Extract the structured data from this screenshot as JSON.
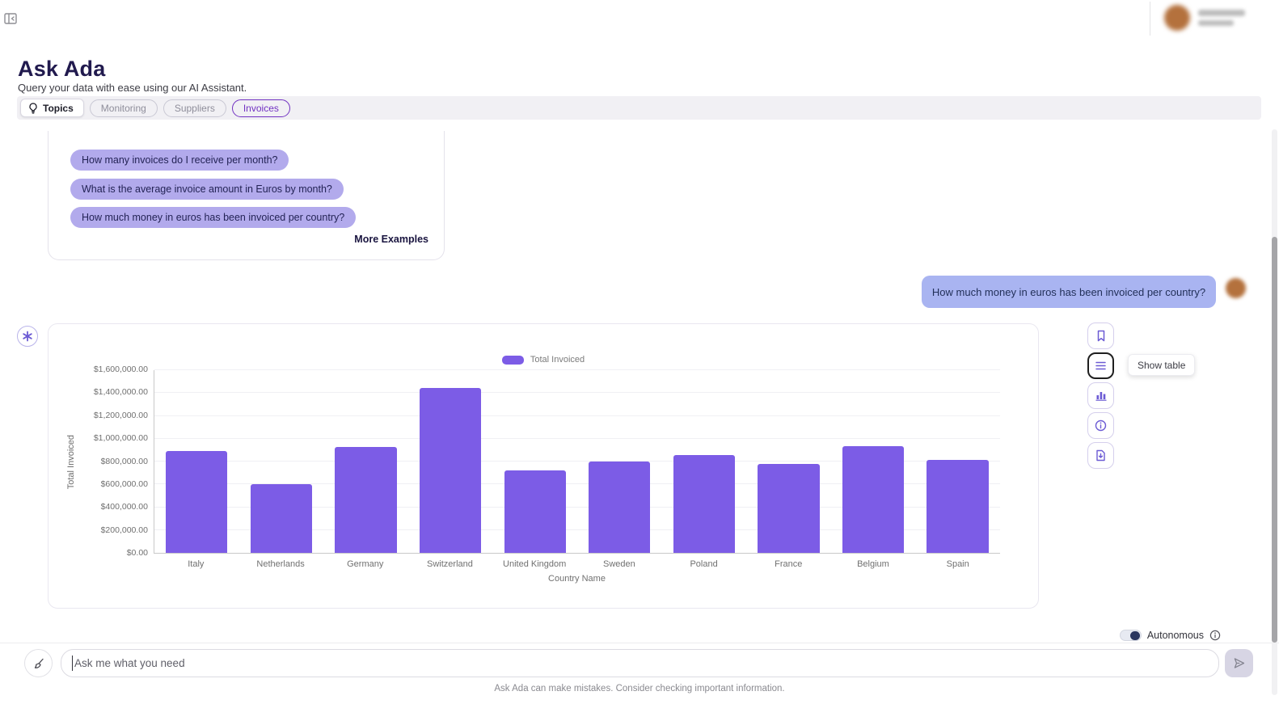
{
  "header": {
    "title": "Ask Ada",
    "subtitle": "Query your data with ease using our AI Assistant."
  },
  "tabs": {
    "topics_label": "Topics",
    "items": [
      {
        "label": "Monitoring",
        "active": false
      },
      {
        "label": "Suppliers",
        "active": false
      },
      {
        "label": "Invoices",
        "active": true
      }
    ]
  },
  "examples": {
    "questions": [
      "How many invoices do I receive per month?",
      "What is the average invoice amount in Euros by month?",
      "How much money in euros has been invoiced per country?"
    ],
    "more_label": "More Examples"
  },
  "chat": {
    "user_message": "How much money in euros has been invoiced per country?"
  },
  "actions": {
    "tooltip": "Show table",
    "buttons": [
      {
        "name": "bookmark"
      },
      {
        "name": "show-table",
        "active": true
      },
      {
        "name": "show-chart"
      },
      {
        "name": "info"
      },
      {
        "name": "export"
      }
    ]
  },
  "chart_data": {
    "type": "bar",
    "legend": [
      "Total Invoiced"
    ],
    "categories": [
      "Italy",
      "Netherlands",
      "Germany",
      "Switzerland",
      "United Kingdom",
      "Sweden",
      "Poland",
      "France",
      "Belgium",
      "Spain"
    ],
    "values": [
      890000,
      600000,
      920000,
      1440000,
      720000,
      800000,
      855000,
      775000,
      930000,
      810000
    ],
    "xlabel": "Country Name",
    "ylabel": "Total Invoiced",
    "ylim": [
      0,
      1600000
    ],
    "ytick_step": 200000,
    "ytick_format": "$#,##0.00",
    "grid": true,
    "legend_position": "top-center",
    "bar_color": "#7c5ce6"
  },
  "composer": {
    "placeholder": "Ask me what you need",
    "autonomous_label": "Autonomous",
    "disclaimer": "Ask Ada can make mistakes. Consider checking important information."
  },
  "colors": {
    "accent_purple": "#7c5ce6",
    "pill_bg": "#b2aaec",
    "bubble_bg": "#a9b4f1",
    "navy_text": "#211a4e",
    "active_tab_purple": "#7232c2"
  }
}
